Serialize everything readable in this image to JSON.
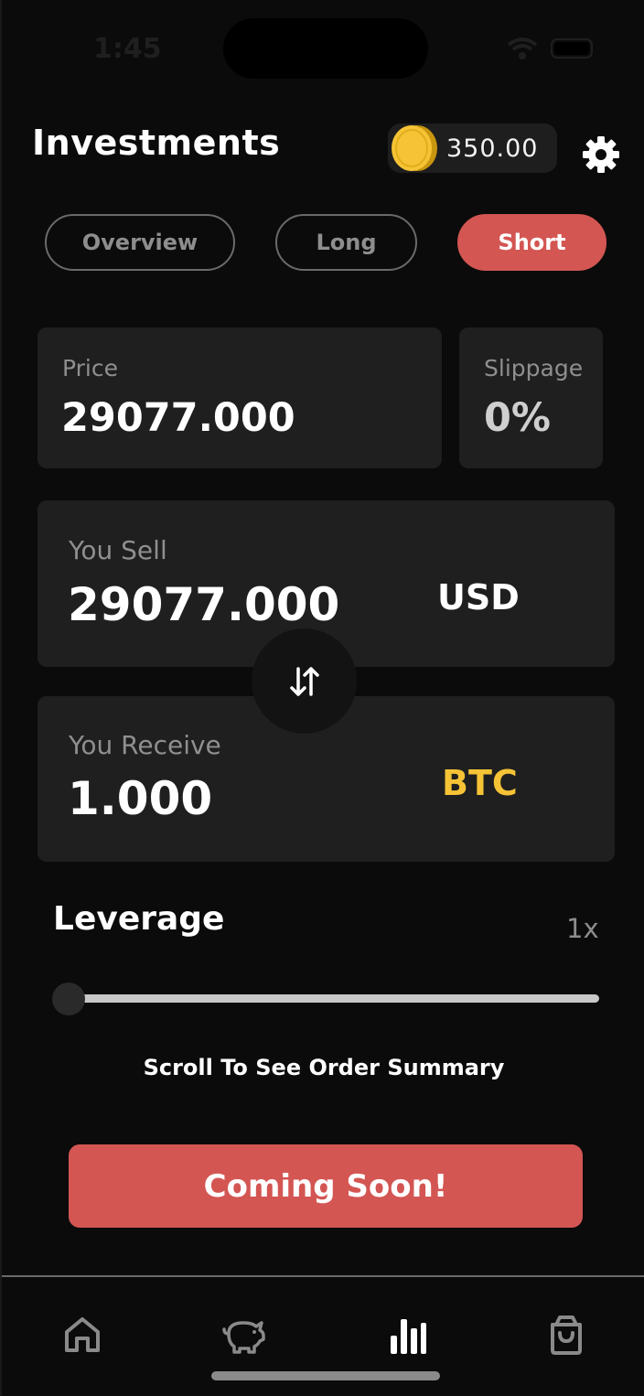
{
  "status_bar": {
    "time": "1:45"
  },
  "header": {
    "title": "Investments",
    "balance": "350.00"
  },
  "tabs": [
    {
      "label": "Overview",
      "active": false
    },
    {
      "label": "Long",
      "active": false
    },
    {
      "label": "Short",
      "active": true
    }
  ],
  "price_card": {
    "label": "Price",
    "value": "29077.000"
  },
  "slippage_card": {
    "label": "Slippage",
    "value": "0%"
  },
  "sell_card": {
    "label": "You Sell",
    "value": "29077.000",
    "currency": "USD"
  },
  "receive_card": {
    "label": "You Receive",
    "value": "1.000",
    "currency": "BTC"
  },
  "leverage": {
    "label": "Leverage",
    "value": "1x",
    "level_fraction": 0
  },
  "scroll_hint": "Scroll To See Order Summary",
  "cta_label": "Coming Soon!",
  "bottom_nav": [
    {
      "icon": "home-icon",
      "active": false
    },
    {
      "icon": "piggy-bank-icon",
      "active": false
    },
    {
      "icon": "bar-chart-icon",
      "active": true
    },
    {
      "icon": "shopping-bag-icon",
      "active": false
    }
  ],
  "colors": {
    "accent": "#d35653",
    "btc": "#f5c335",
    "card": "#1f1f1f",
    "background": "#0b0b0b"
  }
}
